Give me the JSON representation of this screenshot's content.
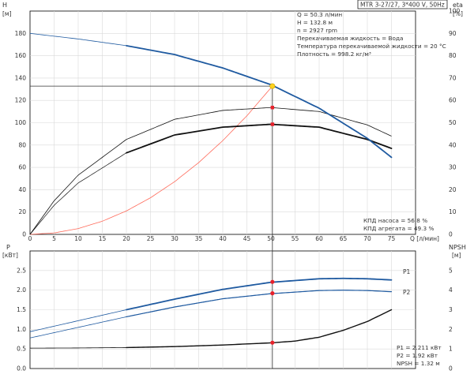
{
  "header": {
    "model": "MTR 3-27/27, 3*400 V, 50Hz"
  },
  "info": {
    "q": "Q = 50.3 л/мин",
    "h": "H = 132.8 м",
    "n": "n = 2927 rpm",
    "liquid": "Перекачиваемая жидкость = Вода",
    "temp": "Температура перекачиваемой жидкости = 20 °C",
    "density": "Плотность = 998.2 кг/м³"
  },
  "efficiency_text": {
    "pump": "КПД насоса = 56.8 %",
    "unit": "КПД агрегата = 49.3 %"
  },
  "power_text": {
    "p1": "P1 = 2.211 кВт",
    "p2": "P2 = 1.92 кВт",
    "npsh": "NPSH = 1.32 м"
  },
  "colors": {
    "head": "#1f5aa0",
    "p1": "#1f5aa0",
    "p2": "#1f5aa0",
    "eta_pump": "#111111",
    "eta_unit": "#111111",
    "npsh": "#111111",
    "system": "#ff6a5a",
    "duty_point": "#ffd21f",
    "marker": "#e8202a",
    "grid": "#d9d9d9"
  },
  "chart_data": [
    {
      "type": "line",
      "x_label": "Q [л/мин]",
      "y_label": "H",
      "y_unit": "[м]",
      "y2_label": "eta",
      "y2_unit": "[%]",
      "xlim": [
        0,
        80
      ],
      "ylim": [
        0,
        200
      ],
      "y2lim": [
        0,
        100
      ],
      "x_ticks": [
        0,
        5,
        10,
        15,
        20,
        25,
        30,
        35,
        40,
        45,
        50,
        55,
        60,
        65,
        70,
        75
      ],
      "y_ticks": [
        0,
        20,
        40,
        60,
        80,
        100,
        120,
        140,
        160,
        180
      ],
      "y2_ticks": [
        0,
        10,
        20,
        30,
        40,
        50,
        60,
        70,
        80,
        90,
        100
      ],
      "grid": true,
      "series": [
        {
          "key": "head",
          "axis": "left",
          "x": [
            0,
            10,
            20,
            30,
            40,
            50,
            60,
            70,
            75
          ],
          "y": [
            180,
            175,
            169,
            161,
            149,
            134,
            113,
            86,
            69
          ]
        },
        {
          "key": "eta_pump",
          "axis": "right",
          "x": [
            0,
            5,
            10,
            20,
            30,
            40,
            50,
            60,
            70,
            75
          ],
          "y": [
            0,
            15,
            26.5,
            42.5,
            51.5,
            55.5,
            56.8,
            55,
            49,
            44
          ]
        },
        {
          "key": "eta_unit",
          "axis": "right",
          "x": [
            0,
            5,
            10,
            20,
            30,
            40,
            50,
            60,
            70,
            75
          ],
          "y": [
            0,
            13,
            23,
            36.5,
            44.5,
            48,
            49.3,
            48,
            42.5,
            38.5
          ]
        },
        {
          "key": "system",
          "axis": "left",
          "x": [
            0,
            5,
            10,
            15,
            20,
            25,
            30,
            35,
            40,
            45,
            50.3
          ],
          "y": [
            0,
            1.3,
            5.2,
            11.8,
            21,
            32.8,
            47.2,
            64.3,
            84,
            106.2,
            132.8
          ]
        }
      ],
      "duty_point": {
        "x": 50.3,
        "y": 132.8
      },
      "markers": [
        {
          "x": 50.3,
          "y": 56.8,
          "axis": "right"
        },
        {
          "x": 50.3,
          "y": 49.3,
          "axis": "right"
        }
      ]
    },
    {
      "type": "line",
      "y_label": "P",
      "y_unit": "[кВт]",
      "y2_label": "NPSH",
      "y2_unit": "[м]",
      "xlim": [
        0,
        80
      ],
      "ylim": [
        0,
        3
      ],
      "y2lim": [
        0,
        6
      ],
      "y_ticks": [
        0,
        0.5,
        1.0,
        1.5,
        2.0,
        2.5
      ],
      "y_tick_labels": [
        "0.0",
        "0.5",
        "1.0",
        "1.5",
        "2.0",
        "2.5"
      ],
      "y2_ticks": [
        0,
        1,
        2,
        3,
        4,
        5
      ],
      "grid": true,
      "series": [
        {
          "key": "p1",
          "name": "P1",
          "axis": "left",
          "x": [
            0,
            10,
            20,
            30,
            40,
            50,
            60,
            65,
            70,
            75
          ],
          "y": [
            0.94,
            1.22,
            1.5,
            1.77,
            2.02,
            2.2,
            2.29,
            2.3,
            2.29,
            2.26
          ]
        },
        {
          "key": "p2",
          "name": "P2",
          "axis": "left",
          "x": [
            0,
            10,
            20,
            30,
            40,
            50,
            60,
            65,
            70,
            75
          ],
          "y": [
            0.78,
            1.05,
            1.32,
            1.57,
            1.78,
            1.91,
            1.99,
            2.0,
            1.99,
            1.96
          ]
        },
        {
          "key": "npsh",
          "axis": "right",
          "x": [
            0,
            10,
            20,
            30,
            40,
            50,
            55,
            60,
            65,
            70,
            75
          ],
          "y": [
            1.04,
            1.05,
            1.07,
            1.12,
            1.2,
            1.31,
            1.4,
            1.6,
            1.95,
            2.4,
            3.0
          ]
        }
      ],
      "markers": [
        {
          "x": 50.3,
          "y": 2.211,
          "axis": "left"
        },
        {
          "x": 50.3,
          "y": 1.92,
          "axis": "left"
        },
        {
          "x": 50.3,
          "y": 1.32,
          "axis": "right"
        }
      ]
    }
  ]
}
